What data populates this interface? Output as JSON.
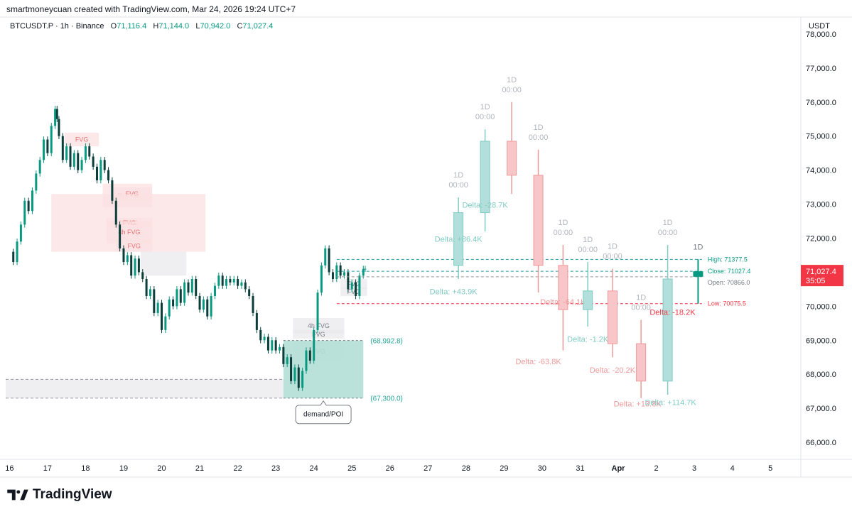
{
  "header": {
    "attribution": "smartmoneycuan created with TradingView.com, Mar 24, 2026 19:24 UTC+7"
  },
  "legend": {
    "symbol": "BTCUSDT.P · 1h · Binance",
    "open_label": "O",
    "open": "71,116.4",
    "high_label": "H",
    "high": "71,144.0",
    "low_label": "L",
    "low": "70,942.0",
    "close_label": "C",
    "close": "71,027.4"
  },
  "currency": "USDT",
  "brand": "TradingView",
  "colors": {
    "up": "#089981",
    "down": "#f23645",
    "up_light": "#b2dfdb",
    "down_light": "#f8c6c9",
    "fvg_red": "#fbe0e1",
    "fvg_gray": "#e9eaec",
    "teal_zone": "#b2dfd6",
    "grid": "#f0f3fa",
    "axis_text": "#131722",
    "price_label_bg": "#f23645"
  },
  "chart_data": {
    "type": "candlestick",
    "ylim": [
      65500,
      78500
    ],
    "y_ticks": [
      66000,
      67000,
      68000,
      69000,
      70000,
      71000,
      72000,
      73000,
      74000,
      75000,
      76000,
      77000,
      78000
    ],
    "y_tick_labels": [
      "66,000.0",
      "67,000.0",
      "68,000.0",
      "69,000.0",
      "70,000.0",
      "71,000.0",
      "72,000.0",
      "73,000.0",
      "74,000.0",
      "75,000.0",
      "76,000.0",
      "77,000.0",
      "78,000.0"
    ],
    "x_day_positions": [
      16,
      17,
      18,
      19,
      20,
      21,
      22,
      23,
      24,
      25,
      26,
      27,
      28,
      29,
      30,
      31,
      32,
      33,
      34,
      35
    ],
    "x_tick_labels": [
      "16",
      "17",
      "18",
      "19",
      "20",
      "21",
      "22",
      "23",
      "24",
      "25",
      "26",
      "27",
      "28",
      "29",
      "30",
      "31",
      "Apr",
      "2",
      "3",
      "4",
      "5"
    ],
    "x_tick_days": [
      16,
      17,
      18,
      19,
      20,
      21,
      22,
      23,
      24,
      25,
      26,
      27,
      28,
      29,
      30,
      31,
      32,
      33,
      34,
      35,
      36
    ],
    "xlim": [
      15.9,
      36.8
    ],
    "hourly_path": [
      [
        16.0,
        71600
      ],
      [
        16.1,
        71300
      ],
      [
        16.2,
        71900
      ],
      [
        16.3,
        72400
      ],
      [
        16.4,
        73100
      ],
      [
        16.5,
        72800
      ],
      [
        16.6,
        73400
      ],
      [
        16.7,
        73900
      ],
      [
        16.8,
        74300
      ],
      [
        16.9,
        74900
      ],
      [
        17.0,
        74500
      ],
      [
        17.1,
        75300
      ],
      [
        17.2,
        75800
      ],
      [
        17.25,
        75500
      ],
      [
        17.3,
        75000
      ],
      [
        17.4,
        74300
      ],
      [
        17.5,
        74700
      ],
      [
        17.6,
        74100
      ],
      [
        17.7,
        74500
      ],
      [
        17.8,
        74000
      ],
      [
        17.9,
        74300
      ],
      [
        18.0,
        74700
      ],
      [
        18.1,
        74400
      ],
      [
        18.2,
        74100
      ],
      [
        18.3,
        73700
      ],
      [
        18.4,
        74300
      ],
      [
        18.5,
        74000
      ],
      [
        18.6,
        73700
      ],
      [
        18.7,
        73100
      ],
      [
        18.8,
        72400
      ],
      [
        18.9,
        71700
      ],
      [
        19.0,
        71300
      ],
      [
        19.1,
        71500
      ],
      [
        19.2,
        70900
      ],
      [
        19.3,
        71400
      ],
      [
        19.4,
        71000
      ],
      [
        19.5,
        70800
      ],
      [
        19.6,
        70300
      ],
      [
        19.7,
        70500
      ],
      [
        19.8,
        69800
      ],
      [
        19.9,
        70100
      ],
      [
        20.0,
        69300
      ],
      [
        20.1,
        69700
      ],
      [
        20.2,
        70200
      ],
      [
        20.3,
        70000
      ],
      [
        20.4,
        70500
      ],
      [
        20.5,
        70100
      ],
      [
        20.6,
        70700
      ],
      [
        20.7,
        70400
      ],
      [
        20.8,
        70800
      ],
      [
        20.9,
        70300
      ],
      [
        21.0,
        69900
      ],
      [
        21.1,
        70200
      ],
      [
        21.2,
        69700
      ],
      [
        21.3,
        70300
      ],
      [
        21.4,
        70600
      ],
      [
        21.5,
        70900
      ],
      [
        21.6,
        70600
      ],
      [
        21.7,
        70800
      ],
      [
        21.8,
        70700
      ],
      [
        21.9,
        70800
      ],
      [
        22.0,
        70600
      ],
      [
        22.1,
        70700
      ],
      [
        22.2,
        70500
      ],
      [
        22.3,
        70300
      ],
      [
        22.4,
        69800
      ],
      [
        22.5,
        69300
      ],
      [
        22.6,
        69000
      ],
      [
        22.7,
        69100
      ],
      [
        22.8,
        68700
      ],
      [
        22.9,
        69000
      ],
      [
        23.0,
        68700
      ],
      [
        23.1,
        68800
      ],
      [
        23.2,
        68300
      ],
      [
        23.3,
        68500
      ],
      [
        23.4,
        67800
      ],
      [
        23.5,
        68200
      ],
      [
        23.6,
        67600
      ],
      [
        23.7,
        68100
      ],
      [
        23.8,
        68700
      ],
      [
        23.9,
        68400
      ],
      [
        24.0,
        69300
      ],
      [
        24.1,
        70400
      ],
      [
        24.2,
        71200
      ],
      [
        24.3,
        71700
      ],
      [
        24.4,
        71000
      ],
      [
        24.5,
        70800
      ],
      [
        24.6,
        71200
      ],
      [
        24.7,
        70900
      ],
      [
        24.8,
        71000
      ],
      [
        24.9,
        70500
      ],
      [
        25.0,
        70700
      ],
      [
        25.1,
        70300
      ],
      [
        25.2,
        70900
      ],
      [
        25.3,
        71100
      ],
      [
        25.35,
        71100
      ]
    ],
    "fvg_zones": [
      {
        "label": "FVG",
        "x0": 17.45,
        "x1": 18.35,
        "y0": 74700,
        "y1": 75100,
        "kind": "red"
      },
      {
        "label": "4h FVG",
        "x0": 18.45,
        "x1": 19.75,
        "y0": 72900,
        "y1": 73600,
        "kind": "red"
      },
      {
        "label": "FVG",
        "x0": 18.7,
        "x1": 19.75,
        "y0": 73100,
        "y1": 73500,
        "kind": "red"
      },
      {
        "label": "D FVG",
        "x0": 17.1,
        "x1": 21.15,
        "y0": 71600,
        "y1": 73300,
        "kind": "red"
      },
      {
        "label": "FVG",
        "x0": 18.55,
        "x1": 19.75,
        "y0": 72300,
        "y1": 72600,
        "kind": "red"
      },
      {
        "label": "4h FVG",
        "x0": 18.55,
        "x1": 19.75,
        "y0": 71850,
        "y1": 72500,
        "kind": "red"
      },
      {
        "label": "FVG",
        "x0": 18.8,
        "x1": 19.75,
        "y0": 71600,
        "y1": 71950,
        "kind": "red"
      },
      {
        "label": "",
        "x0": 19.45,
        "x1": 20.65,
        "y0": 70900,
        "y1": 71600,
        "kind": "gray"
      },
      {
        "label": "FVG",
        "x0": 24.7,
        "x1": 25.4,
        "y0": 70500,
        "y1": 70800,
        "kind": "gray"
      },
      {
        "label": "FVG",
        "x0": 24.7,
        "x1": 25.4,
        "y0": 70300,
        "y1": 70550,
        "kind": "gray"
      },
      {
        "label": "4h FVG",
        "x0": 23.45,
        "x1": 24.8,
        "y0": 69200,
        "y1": 69650,
        "kind": "gray"
      },
      {
        "label": "FVG",
        "x0": 23.45,
        "x1": 24.8,
        "y0": 69050,
        "y1": 69300,
        "kind": "gray"
      },
      {
        "label": "FVG",
        "x0": 23.45,
        "x1": 24.8,
        "y0": 68400,
        "y1": 68950,
        "kind": "gray"
      },
      {
        "label": "",
        "x0": 15.9,
        "x1": 23.2,
        "y0": 67300,
        "y1": 67850,
        "kind": "gray"
      }
    ],
    "demand_zone": {
      "label": "demand/POI",
      "x0": 23.2,
      "x1": 25.3,
      "y0": 67300,
      "y1": 68992.8,
      "top_label": "(68,992.8)",
      "bottom_label": "(67,300.0)"
    },
    "projection_candles": [
      {
        "label": "1D",
        "time": "00:00",
        "x": 27.8,
        "open": 71200,
        "close": 72750,
        "high": 73200,
        "low": 70800,
        "delta": "Delta: +86.4K",
        "delta2": "Delta: +43.9K",
        "dir": "up"
      },
      {
        "label": "1D",
        "time": "00:00",
        "x": 28.5,
        "open": 72750,
        "close": 74850,
        "high": 75200,
        "low": 72200,
        "delta": "Delta: -28.7K",
        "dir": "up"
      },
      {
        "label": "1D",
        "time": "00:00",
        "x": 29.2,
        "open": 74850,
        "close": 73850,
        "high": 76000,
        "low": 73300,
        "delta": "",
        "dir": "down"
      },
      {
        "label": "1D",
        "time": "00:00",
        "x": 29.9,
        "open": 73850,
        "close": 71200,
        "high": 74600,
        "low": 70400,
        "delta": "Delta: -63.8K",
        "dir": "down"
      },
      {
        "label": "1D",
        "time": "00:00",
        "x": 30.55,
        "open": 71200,
        "close": 69900,
        "high": 71800,
        "low": 68700,
        "delta": "Delta: -64.1K",
        "dir": "down"
      },
      {
        "label": "1D",
        "time": "00:00",
        "x": 31.2,
        "open": 69900,
        "close": 70450,
        "high": 71300,
        "low": 69400,
        "delta": "Delta: -1.2K",
        "dir": "up"
      },
      {
        "label": "1D",
        "time": "00:00",
        "x": 31.85,
        "open": 70450,
        "close": 68900,
        "high": 71100,
        "low": 68500,
        "delta": "Delta: -20.2K",
        "dir": "down"
      },
      {
        "label": "1D",
        "time": "00:00",
        "x": 32.6,
        "open": 68900,
        "close": 67800,
        "high": 69600,
        "low": 67300,
        "delta": "Delta: +13.8K",
        "dir": "down"
      },
      {
        "label": "1D",
        "time": "00:00",
        "x": 33.3,
        "open": 67800,
        "close": 70800,
        "high": 71800,
        "low": 67400,
        "delta": "Delta: +114.7K",
        "dir": "up"
      }
    ],
    "current_daily": {
      "label": "1D",
      "x": 34.1,
      "open": 70866.0,
      "close": 71027.4,
      "high": 71377.5,
      "low": 70075.5,
      "delta": "Delta: -18.2K"
    },
    "levels": {
      "high_label": "High: 71377.5",
      "close_label": "Close: 71027.4",
      "open_label": "Open: 70866.0",
      "low_label": "Low: 70075.5",
      "high": 71377.5,
      "close": 71027.4,
      "open": 70866.0,
      "low": 70075.5
    },
    "price_tag": {
      "price": "71,027.4",
      "countdown": "35:05",
      "value": 71027.4
    }
  }
}
